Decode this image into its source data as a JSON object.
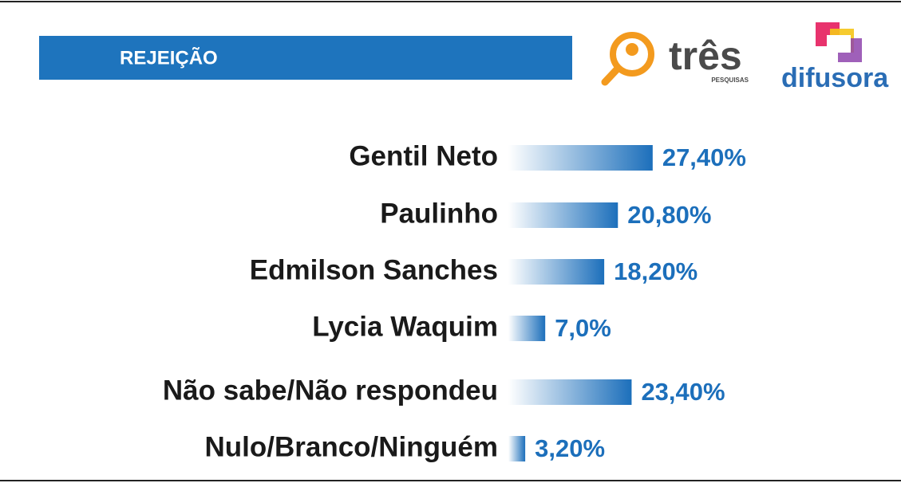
{
  "chart_data": {
    "type": "hbar",
    "title": "REJEIÇÃO",
    "categories": [
      "Gentil Neto",
      "Paulinho",
      "Edmilson Sanches",
      "Lycia Waquim",
      "Não sabe/Não respondeu",
      "Nulo/Branco/Ninguém"
    ],
    "values": [
      27.4,
      20.8,
      18.2,
      7.0,
      23.4,
      3.2
    ],
    "value_labels": [
      "27,40%",
      "20,80%",
      "18,20%",
      "7,0%",
      "23,40%",
      "3,20%"
    ],
    "color": "#1c6fbb"
  },
  "logos": {
    "tres": "três",
    "tres_sub": "PESQUISAS",
    "difusora": "difusora"
  }
}
